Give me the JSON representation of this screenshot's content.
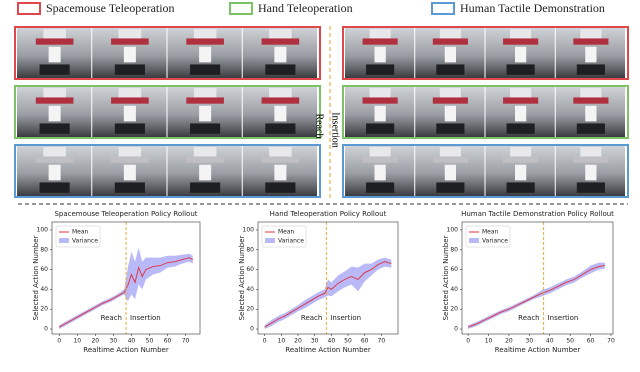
{
  "legend": [
    {
      "label": "Spacemouse Teleoperation",
      "color": "#e0474c"
    },
    {
      "label": "Hand Teleoperation",
      "color": "#7cc267"
    },
    {
      "label": "Human Tactile Demonstration",
      "color": "#5b9bd5"
    }
  ],
  "phase_labels": [
    "Reach",
    "Insertion"
  ],
  "chart_data": [
    {
      "type": "line",
      "title": "Spacemouse Teleoperation Policy Rollout",
      "x_label": "Realtime Action Number",
      "y_label": "Selected Action Number",
      "x": [
        0,
        4,
        8,
        12,
        16,
        20,
        24,
        28,
        32,
        36,
        38,
        40,
        42,
        44,
        46,
        48,
        52,
        56,
        60,
        64,
        68,
        72,
        74
      ],
      "series": [
        {
          "name": "Mean",
          "color": "#e0303a",
          "values": [
            2,
            6,
            10,
            14,
            18,
            22,
            26,
            29,
            33,
            37,
            44,
            55,
            47,
            62,
            53,
            60,
            63,
            64,
            67,
            68,
            70,
            72,
            70
          ]
        },
        {
          "name": "Variance",
          "color": "#8080f0",
          "lower": [
            0,
            4,
            8,
            12,
            16,
            20,
            24,
            27,
            31,
            35,
            28,
            35,
            30,
            45,
            40,
            50,
            55,
            57,
            62,
            63,
            66,
            68,
            66
          ],
          "upper": [
            4,
            8,
            12,
            16,
            20,
            24,
            28,
            31,
            35,
            40,
            62,
            78,
            68,
            82,
            68,
            72,
            72,
            72,
            74,
            74,
            75,
            76,
            74
          ]
        }
      ],
      "phase_switch_x": 37,
      "annotations": [
        "Reach",
        "Insertion"
      ],
      "xlim": [
        -4,
        78
      ],
      "ylim": [
        -5,
        108
      ],
      "xticks": [
        0,
        10,
        20,
        30,
        40,
        50,
        60,
        70
      ],
      "yticks": [
        0,
        20,
        40,
        60,
        80,
        100
      ],
      "legend": "upper left"
    },
    {
      "type": "line",
      "title": "Hand Teleoperation Policy Rollout",
      "x_label": "Realtime Action Number",
      "y_label": "Selected Action Number",
      "x": [
        0,
        4,
        8,
        12,
        16,
        20,
        24,
        28,
        32,
        36,
        38,
        40,
        44,
        48,
        52,
        56,
        60,
        64,
        68,
        72,
        76
      ],
      "series": [
        {
          "name": "Mean",
          "color": "#e0303a",
          "values": [
            2,
            6,
            10,
            13,
            17,
            21,
            25,
            29,
            33,
            36,
            42,
            40,
            46,
            50,
            53,
            50,
            57,
            60,
            65,
            68,
            66
          ]
        },
        {
          "name": "Variance",
          "color": "#8080f0",
          "lower": [
            0,
            3,
            7,
            10,
            14,
            18,
            21,
            25,
            29,
            32,
            34,
            33,
            38,
            42,
            45,
            38,
            48,
            54,
            60,
            63,
            62
          ],
          "upper": [
            4,
            9,
            13,
            16,
            20,
            24,
            29,
            33,
            37,
            40,
            50,
            47,
            54,
            58,
            63,
            62,
            66,
            66,
            70,
            72,
            70
          ]
        }
      ],
      "phase_switch_x": 37,
      "annotations": [
        "Reach",
        "Insertion"
      ],
      "xlim": [
        -4,
        80
      ],
      "ylim": [
        -5,
        108
      ],
      "xticks": [
        0,
        10,
        20,
        30,
        40,
        50,
        60,
        70
      ],
      "yticks": [
        0,
        20,
        40,
        60,
        80,
        100
      ],
      "legend": "upper left"
    },
    {
      "type": "line",
      "title": "Human Tactile Demonstration Policy Rollout",
      "x_label": "Realtime Action Number",
      "y_label": "Selected Action Number",
      "x": [
        0,
        4,
        8,
        12,
        16,
        20,
        24,
        28,
        32,
        36,
        40,
        44,
        48,
        52,
        56,
        60,
        64,
        67
      ],
      "series": [
        {
          "name": "Mean",
          "color": "#e0303a",
          "values": [
            2,
            5,
            9,
            13,
            17,
            20,
            24,
            28,
            32,
            36,
            39,
            43,
            47,
            50,
            55,
            60,
            63,
            64
          ]
        },
        {
          "name": "Variance",
          "color": "#8080f0",
          "lower": [
            0,
            3,
            7,
            11,
            15,
            18,
            22,
            26,
            30,
            33,
            36,
            40,
            44,
            47,
            52,
            56,
            60,
            61
          ],
          "upper": [
            4,
            7,
            11,
            15,
            19,
            22,
            26,
            30,
            34,
            39,
            42,
            46,
            50,
            53,
            58,
            64,
            67,
            67
          ]
        }
      ],
      "phase_switch_x": 37,
      "annotations": [
        "Reach",
        "Insertion"
      ],
      "xlim": [
        -3,
        71
      ],
      "ylim": [
        -5,
        108
      ],
      "xticks": [
        0,
        10,
        20,
        30,
        40,
        50,
        60,
        70
      ],
      "yticks": [
        0,
        20,
        40,
        60,
        80,
        100
      ],
      "legend": "upper left"
    }
  ]
}
